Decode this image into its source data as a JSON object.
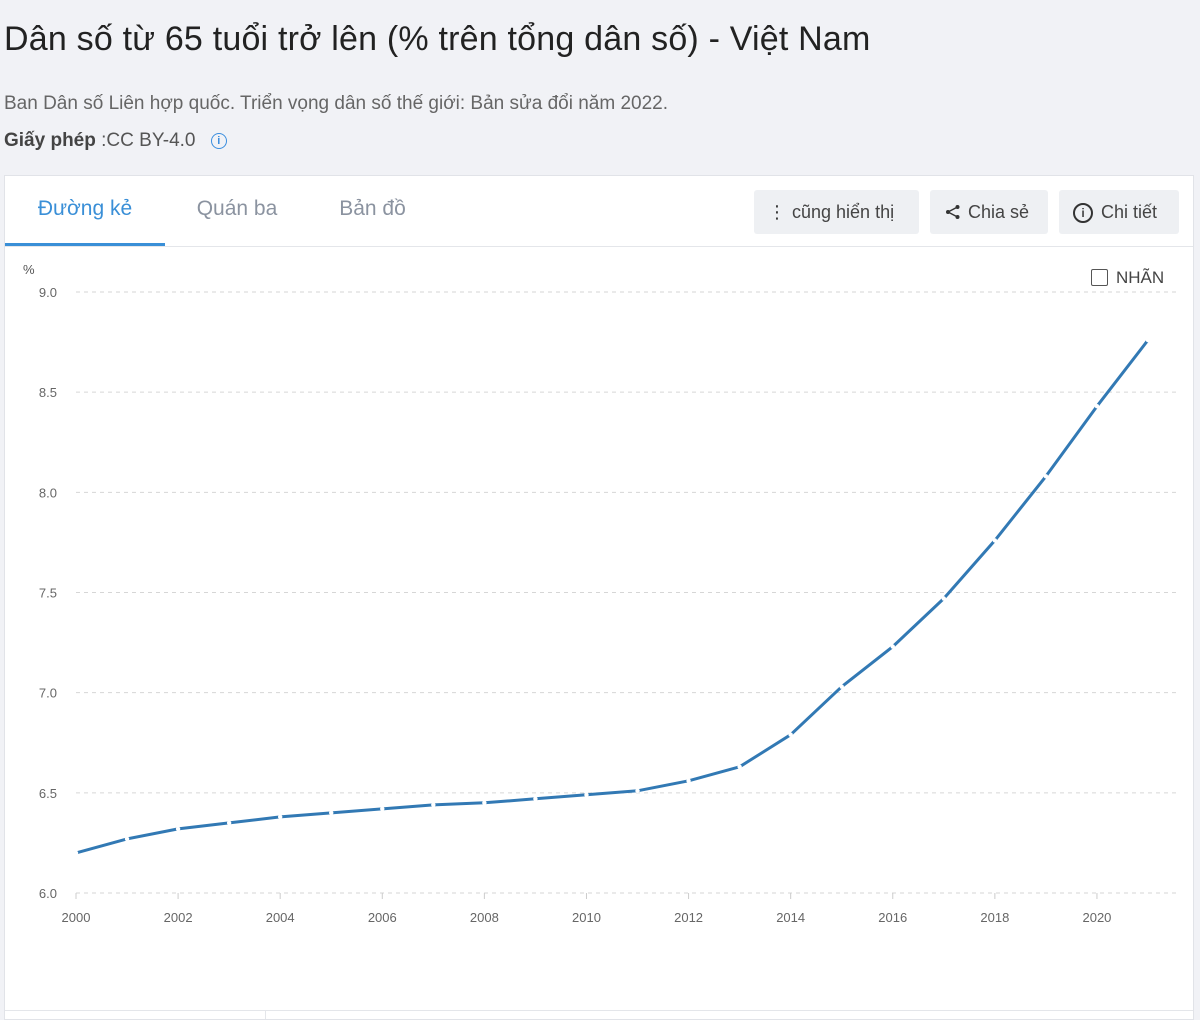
{
  "header": {
    "title": "Dân số từ 65 tuổi trở lên (% trên tổng dân số) - Việt Nam",
    "source": "Ban Dân số Liên hợp quốc. Triển vọng dân số thế giới: Bản sửa đổi năm 2022.",
    "license_label": "Giấy phép",
    "license_value": ":CC BY-4.0"
  },
  "tabs": [
    {
      "label": "Đường kẻ",
      "active": true
    },
    {
      "label": "Quán ba",
      "active": false
    },
    {
      "label": "Bản đồ",
      "active": false
    }
  ],
  "toolbar": {
    "also_show_label": "cũng hiển thị",
    "share_label": "Chia sẻ",
    "details_label": "Chi tiết"
  },
  "labels_toggle": {
    "label": "NHÃN",
    "checked": false
  },
  "colors": {
    "line": "#3279b4",
    "accent": "#3a8fd7",
    "grid": "#d6d6d6"
  },
  "chart_data": {
    "type": "line",
    "ylabel": "%",
    "ylim": [
      6.0,
      9.0
    ],
    "yticks": [
      "6.0",
      "6.5",
      "7.0",
      "7.5",
      "8.0",
      "8.5",
      "9.0"
    ],
    "xlim": [
      2000,
      2021
    ],
    "xticks": [
      "2000",
      "2002",
      "2004",
      "2006",
      "2008",
      "2010",
      "2012",
      "2014",
      "2016",
      "2018",
      "2020"
    ],
    "grid": true,
    "series": [
      {
        "x": [
          2000,
          2001,
          2002,
          2003,
          2004,
          2005,
          2006,
          2007,
          2008,
          2009,
          2010,
          2011,
          2012,
          2013,
          2014,
          2015,
          2016,
          2017,
          2018,
          2019,
          2020,
          2021
        ],
        "values": [
          6.2,
          6.27,
          6.32,
          6.35,
          6.38,
          6.4,
          6.42,
          6.44,
          6.45,
          6.47,
          6.49,
          6.51,
          6.56,
          6.63,
          6.79,
          7.03,
          7.23,
          7.47,
          7.76,
          8.08,
          8.43,
          8.76
        ]
      }
    ]
  }
}
